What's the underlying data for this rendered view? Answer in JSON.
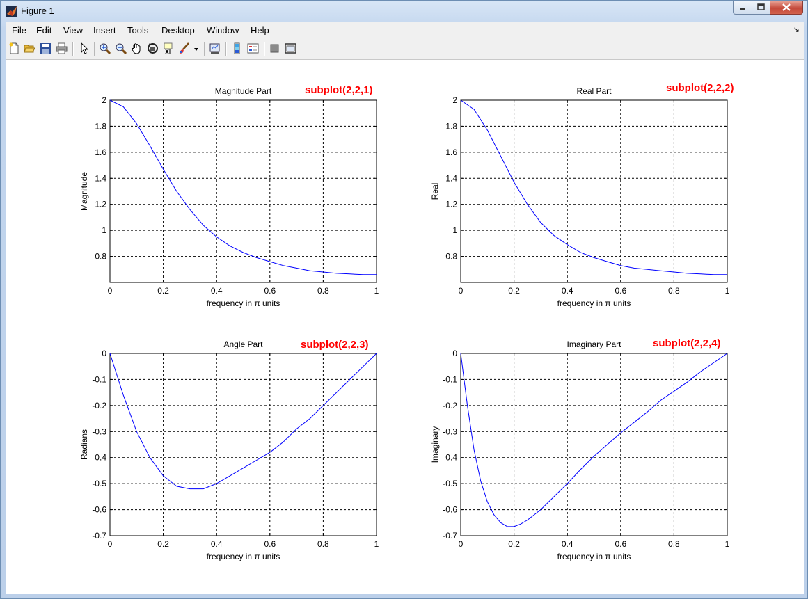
{
  "window": {
    "title": "Figure 1"
  },
  "menu": {
    "items": [
      "File",
      "Edit",
      "View",
      "Insert",
      "Tools",
      "Desktop",
      "Window",
      "Help"
    ]
  },
  "toolbar": {
    "icons": [
      "new-figure-icon",
      "open-file-icon",
      "save-icon",
      "print-icon",
      "edit-plot-arrow-icon",
      "zoom-in-icon",
      "zoom-out-icon",
      "pan-hand-icon",
      "rotate-3d-icon",
      "data-cursor-icon",
      "brush-icon",
      "brush-dropdown-icon",
      "link-plot-icon",
      "colorbar-icon",
      "legend-icon",
      "hide-plot-tools-icon",
      "show-plot-tools-icon"
    ]
  },
  "colors": {
    "line": "#0000ff",
    "annotation": "#ff0000",
    "grid": "#000000"
  },
  "chart_data": [
    {
      "type": "line",
      "title": "Magnitude Part",
      "annotation": "subplot(2,2,1)",
      "xlabel": "frequency in π units",
      "ylabel": "Magnitude",
      "xlim": [
        0,
        1
      ],
      "ylim": [
        0.6,
        2
      ],
      "xticks": [
        "0",
        "0.2",
        "0.4",
        "0.6",
        "0.8",
        "1"
      ],
      "yticks": [
        "0.8",
        "1",
        "1.2",
        "1.4",
        "1.6",
        "1.8",
        "2"
      ],
      "grid": true,
      "series": [
        {
          "x": [
            0,
            0.05,
            0.1,
            0.15,
            0.2,
            0.25,
            0.3,
            0.35,
            0.4,
            0.45,
            0.5,
            0.55,
            0.6,
            0.65,
            0.7,
            0.75,
            0.8,
            0.85,
            0.9,
            0.95,
            1
          ],
          "y": [
            2,
            1.95,
            1.82,
            1.65,
            1.47,
            1.3,
            1.16,
            1.04,
            0.95,
            0.88,
            0.83,
            0.79,
            0.76,
            0.73,
            0.71,
            0.69,
            0.68,
            0.67,
            0.665,
            0.66,
            0.66
          ]
        }
      ]
    },
    {
      "type": "line",
      "title": "Real Part",
      "annotation": "subplot(2,2,2)",
      "xlabel": "frequency in π units",
      "ylabel": "Real",
      "xlim": [
        0,
        1
      ],
      "ylim": [
        0.6,
        2
      ],
      "xticks": [
        "0",
        "0.2",
        "0.4",
        "0.6",
        "0.8",
        "1"
      ],
      "yticks": [
        "0.8",
        "1",
        "1.2",
        "1.4",
        "1.6",
        "1.8",
        "2"
      ],
      "grid": true,
      "series": [
        {
          "x": [
            0,
            0.05,
            0.1,
            0.15,
            0.2,
            0.25,
            0.3,
            0.35,
            0.4,
            0.45,
            0.5,
            0.55,
            0.6,
            0.65,
            0.7,
            0.75,
            0.8,
            0.85,
            0.9,
            0.95,
            1
          ],
          "y": [
            2,
            1.93,
            1.77,
            1.57,
            1.37,
            1.2,
            1.06,
            0.96,
            0.89,
            0.83,
            0.79,
            0.76,
            0.73,
            0.71,
            0.7,
            0.69,
            0.68,
            0.67,
            0.665,
            0.66,
            0.66
          ]
        }
      ]
    },
    {
      "type": "line",
      "title": "Angle Part",
      "annotation": "subplot(2,2,3)",
      "xlabel": "frequency in π units",
      "ylabel": "Radians",
      "xlim": [
        0,
        1
      ],
      "ylim": [
        -0.7,
        0
      ],
      "xticks": [
        "0",
        "0.2",
        "0.4",
        "0.6",
        "0.8",
        "1"
      ],
      "yticks": [
        "-0.7",
        "-0.6",
        "-0.5",
        "-0.4",
        "-0.3",
        "-0.2",
        "-0.1",
        "0"
      ],
      "grid": true,
      "series": [
        {
          "x": [
            0,
            0.05,
            0.1,
            0.15,
            0.2,
            0.25,
            0.3,
            0.35,
            0.4,
            0.45,
            0.5,
            0.55,
            0.6,
            0.65,
            0.7,
            0.75,
            0.8,
            0.85,
            0.9,
            0.95,
            1
          ],
          "y": [
            0,
            -0.16,
            -0.3,
            -0.4,
            -0.47,
            -0.51,
            -0.52,
            -0.52,
            -0.5,
            -0.47,
            -0.44,
            -0.41,
            -0.38,
            -0.34,
            -0.29,
            -0.25,
            -0.2,
            -0.15,
            -0.1,
            -0.05,
            0
          ]
        }
      ]
    },
    {
      "type": "line",
      "title": "Imaginary Part",
      "annotation": "subplot(2,2,4)",
      "xlabel": "frequency in π units",
      "ylabel": "Imaginary",
      "xlim": [
        0,
        1
      ],
      "ylim": [
        -0.7,
        0
      ],
      "xticks": [
        "0",
        "0.2",
        "0.4",
        "0.6",
        "0.8",
        "1"
      ],
      "yticks": [
        "-0.7",
        "-0.6",
        "-0.5",
        "-0.4",
        "-0.3",
        "-0.2",
        "-0.1",
        "0"
      ],
      "grid": true,
      "series": [
        {
          "x": [
            0,
            0.025,
            0.05,
            0.075,
            0.1,
            0.125,
            0.15,
            0.175,
            0.2,
            0.225,
            0.25,
            0.3,
            0.35,
            0.4,
            0.45,
            0.5,
            0.55,
            0.6,
            0.65,
            0.7,
            0.75,
            0.8,
            0.85,
            0.9,
            0.95,
            1
          ],
          "y": [
            0,
            -0.2,
            -0.37,
            -0.49,
            -0.57,
            -0.62,
            -0.65,
            -0.665,
            -0.665,
            -0.655,
            -0.64,
            -0.6,
            -0.55,
            -0.5,
            -0.445,
            -0.395,
            -0.35,
            -0.305,
            -0.265,
            -0.225,
            -0.18,
            -0.145,
            -0.11,
            -0.07,
            -0.035,
            0
          ]
        }
      ]
    }
  ]
}
